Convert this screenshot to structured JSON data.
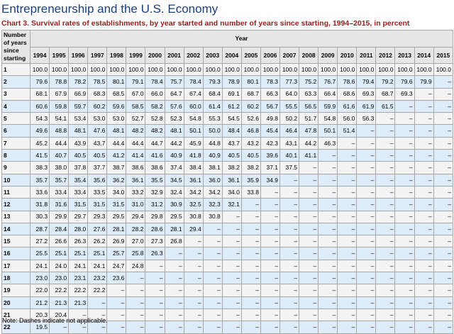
{
  "page_title": "Entrepreneurship and the U.S. Economy",
  "chart_title": "Chart 3. Survival rates of establishments, by year started and number of years since starting, 1994–2015, in percent",
  "table": {
    "stub_header": [
      "Number",
      "of years",
      "since",
      "starting"
    ],
    "group_header": "Year",
    "years": [
      "1994",
      "1995",
      "1996",
      "1997",
      "1998",
      "1999",
      "2000",
      "2001",
      "2002",
      "2003",
      "2004",
      "2005",
      "2006",
      "2007",
      "2008",
      "2009",
      "2010",
      "2011",
      "2012",
      "2013",
      "2014",
      "2015"
    ],
    "rows": [
      {
        "label": "1",
        "values": [
          "100.0",
          "100.0",
          "100.0",
          "100.0",
          "100.0",
          "100.0",
          "100.0",
          "100.0",
          "100.0",
          "100.0",
          "100.0",
          "100.0",
          "100.0",
          "100.0",
          "100.0",
          "100.0",
          "100.0",
          "100.0",
          "100.0",
          "100.0",
          "100.0",
          "100.0"
        ]
      },
      {
        "label": "2",
        "values": [
          "79.6",
          "78.8",
          "78.2",
          "78.5",
          "80.1",
          "79.1",
          "78.4",
          "75.7",
          "78.4",
          "79.3",
          "78.9",
          "80.1",
          "78.3",
          "77.3",
          "75.2",
          "76.7",
          "78.6",
          "79.4",
          "79.2",
          "79.6",
          "79.9",
          "–"
        ]
      },
      {
        "label": "3",
        "values": [
          "68.1",
          "67.9",
          "66.9",
          "68.3",
          "68.5",
          "67.0",
          "66.0",
          "64.7",
          "67.4",
          "68.4",
          "69.1",
          "68.7",
          "66.3",
          "64.0",
          "63.3",
          "66.4",
          "68.6",
          "69.3",
          "68.7",
          "69.3",
          "–",
          "–"
        ]
      },
      {
        "label": "4",
        "values": [
          "60.6",
          "59.8",
          "59.7",
          "60.2",
          "59.6",
          "58.5",
          "58.2",
          "57.6",
          "60.0",
          "61.4",
          "61.2",
          "60.2",
          "56.7",
          "55.5",
          "56.5",
          "59.9",
          "61.6",
          "61.9",
          "61.5",
          "–",
          "–",
          "–"
        ]
      },
      {
        "label": "5",
        "values": [
          "54.3",
          "54.1",
          "53.4",
          "53.0",
          "53.0",
          "52.7",
          "52.8",
          "52.3",
          "54.8",
          "55.3",
          "54.5",
          "52.6",
          "49.8",
          "50.2",
          "51.7",
          "54.8",
          "56.0",
          "56.3",
          "–",
          "–",
          "–",
          "–"
        ]
      },
      {
        "label": "6",
        "values": [
          "49.6",
          "48.8",
          "48.1",
          "47.6",
          "48.1",
          "48.2",
          "48.2",
          "48.1",
          "50.1",
          "50.0",
          "48.4",
          "46.8",
          "45.4",
          "46.4",
          "47.8",
          "50.1",
          "51.4",
          "–",
          "–",
          "–",
          "–",
          "–"
        ]
      },
      {
        "label": "7",
        "values": [
          "45.2",
          "44.4",
          "43.9",
          "43.7",
          "44.4",
          "44.4",
          "44.7",
          "44.2",
          "45.9",
          "44.8",
          "43.7",
          "43.2",
          "42.3",
          "43.1",
          "44.2",
          "46.3",
          "–",
          "–",
          "–",
          "–",
          "–",
          "–"
        ]
      },
      {
        "label": "8",
        "values": [
          "41.5",
          "40.7",
          "40.5",
          "40.5",
          "41.2",
          "41.4",
          "41.6",
          "40.9",
          "41.8",
          "40.9",
          "40.5",
          "40.5",
          "39.6",
          "40.1",
          "41.1",
          "–",
          "–",
          "–",
          "–",
          "–",
          "–",
          "–"
        ]
      },
      {
        "label": "9",
        "values": [
          "38.3",
          "38.0",
          "37.8",
          "37.7",
          "38.7",
          "38.6",
          "38.6",
          "37.4",
          "38.4",
          "38.1",
          "38.2",
          "38.2",
          "37.1",
          "37.5",
          "–",
          "–",
          "–",
          "–",
          "–",
          "–",
          "–",
          "–"
        ]
      },
      {
        "label": "10",
        "values": [
          "35.7",
          "35.7",
          "35.4",
          "35.6",
          "36.2",
          "36.1",
          "35.5",
          "34.5",
          "36.1",
          "36.0",
          "36.1",
          "35.9",
          "34.9",
          "–",
          "–",
          "–",
          "–",
          "–",
          "–",
          "–",
          "–",
          "–"
        ]
      },
      {
        "label": "11",
        "values": [
          "33.6",
          "33.4",
          "33.4",
          "33.5",
          "34.0",
          "33.2",
          "32.9",
          "32.4",
          "34.2",
          "34.2",
          "34.0",
          "33.8",
          "–",
          "–",
          "–",
          "–",
          "–",
          "–",
          "–",
          "–",
          "–",
          "–"
        ]
      },
      {
        "label": "12",
        "values": [
          "31.8",
          "31.6",
          "31.5",
          "31.5",
          "31.5",
          "31.0",
          "31.2",
          "30.9",
          "32.5",
          "32.3",
          "32.1",
          "–",
          "–",
          "–",
          "–",
          "–",
          "–",
          "–",
          "–",
          "–",
          "–",
          "–"
        ]
      },
      {
        "label": "13",
        "values": [
          "30.3",
          "29.9",
          "29.7",
          "29.3",
          "29.5",
          "29.4",
          "29.8",
          "29.5",
          "30.8",
          "30.8",
          "–",
          "–",
          "–",
          "–",
          "–",
          "–",
          "–",
          "–",
          "–",
          "–",
          "–",
          "–"
        ]
      },
      {
        "label": "14",
        "values": [
          "28.7",
          "28.4",
          "28.0",
          "27.6",
          "28.1",
          "28.2",
          "28.6",
          "28.1",
          "29.4",
          "–",
          "–",
          "–",
          "–",
          "–",
          "–",
          "–",
          "–",
          "–",
          "–",
          "–",
          "–",
          "–"
        ]
      },
      {
        "label": "15",
        "values": [
          "27.2",
          "26.6",
          "26.3",
          "26.2",
          "26.9",
          "27.0",
          "27.3",
          "26.8",
          "–",
          "–",
          "–",
          "–",
          "–",
          "–",
          "–",
          "–",
          "–",
          "–",
          "–",
          "–",
          "–",
          "–"
        ]
      },
      {
        "label": "16",
        "values": [
          "25.5",
          "25.1",
          "25.1",
          "25.1",
          "25.7",
          "25.8",
          "26.3",
          "–",
          "–",
          "–",
          "–",
          "–",
          "–",
          "–",
          "–",
          "–",
          "–",
          "–",
          "–",
          "–",
          "–",
          "–"
        ]
      },
      {
        "label": "17",
        "values": [
          "24.1",
          "24.0",
          "24.1",
          "24.1",
          "24.7",
          "24.8",
          "–",
          "–",
          "–",
          "–",
          "–",
          "–",
          "–",
          "–",
          "–",
          "–",
          "–",
          "–",
          "–",
          "–",
          "–",
          "–"
        ]
      },
      {
        "label": "18",
        "values": [
          "23.0",
          "23.0",
          "23.1",
          "23.2",
          "23.6",
          "–",
          "–",
          "–",
          "–",
          "–",
          "–",
          "–",
          "–",
          "–",
          "–",
          "–",
          "–",
          "–",
          "–",
          "–",
          "–",
          "–"
        ]
      },
      {
        "label": "19",
        "values": [
          "22.0",
          "22.2",
          "22.2",
          "22.2",
          "–",
          "–",
          "–",
          "–",
          "–",
          "–",
          "–",
          "–",
          "–",
          "–",
          "–",
          "–",
          "–",
          "–",
          "–",
          "–",
          "–",
          "–"
        ]
      },
      {
        "label": "20",
        "values": [
          "21.2",
          "21.3",
          "21.3",
          "–",
          "–",
          "–",
          "–",
          "–",
          "–",
          "–",
          "–",
          "–",
          "–",
          "–",
          "–",
          "–",
          "–",
          "–",
          "–",
          "–",
          "–",
          "–"
        ]
      },
      {
        "label": "21",
        "values": [
          "20.3",
          "20.4",
          "–",
          "–",
          "–",
          "–",
          "–",
          "–",
          "–",
          "–",
          "–",
          "–",
          "–",
          "–",
          "–",
          "–",
          "–",
          "–",
          "–",
          "–",
          "–",
          "–"
        ]
      },
      {
        "label": "22",
        "values": [
          "19.5",
          "–",
          "–",
          "–",
          "–",
          "–",
          "–",
          "–",
          "–",
          "–",
          "–",
          "–",
          "–",
          "–",
          "–",
          "–",
          "–",
          "–",
          "–",
          "–",
          "–",
          "–"
        ]
      }
    ]
  },
  "note": "Note: Dashes indicate not applicable.",
  "colors": {
    "title": "#1c3f7c",
    "caption": "#9c1b1b",
    "header_bg": "#e6e6e6",
    "row_odd_bg": "#f3f3f3",
    "row_even_bg": "#ddecf8",
    "border": "#a7a7a7"
  }
}
